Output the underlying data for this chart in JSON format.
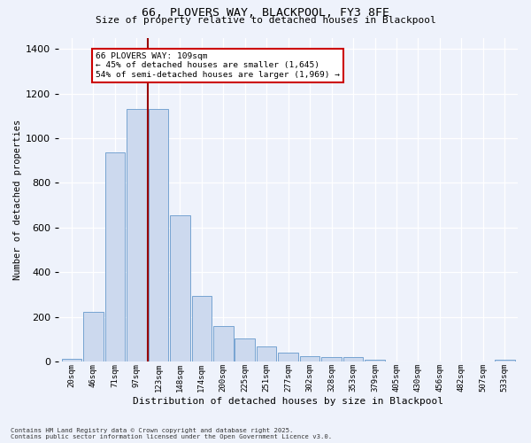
{
  "title1": "66, PLOVERS WAY, BLACKPOOL, FY3 8FE",
  "title2": "Size of property relative to detached houses in Blackpool",
  "xlabel": "Distribution of detached houses by size in Blackpool",
  "ylabel": "Number of detached properties",
  "bar_color": "#ccd9ee",
  "bar_edge_color": "#6699cc",
  "background_color": "#eef2fb",
  "grid_color": "#ffffff",
  "vline_x": 3,
  "vline_color": "#990000",
  "annotation_text": "66 PLOVERS WAY: 109sqm\n← 45% of detached houses are smaller (1,645)\n54% of semi-detached houses are larger (1,969) →",
  "annotation_box_color": "#ffffff",
  "annotation_edge_color": "#cc0000",
  "footer1": "Contains HM Land Registry data © Crown copyright and database right 2025.",
  "footer2": "Contains public sector information licensed under the Open Government Licence v3.0.",
  "bin_labels": [
    "20sqm",
    "46sqm",
    "71sqm",
    "97sqm",
    "123sqm",
    "148sqm",
    "174sqm",
    "200sqm",
    "225sqm",
    "251sqm",
    "277sqm",
    "302sqm",
    "328sqm",
    "353sqm",
    "379sqm",
    "405sqm",
    "430sqm",
    "456sqm",
    "482sqm",
    "507sqm",
    "533sqm"
  ],
  "counts": [
    15,
    225,
    935,
    1130,
    1130,
    655,
    295,
    160,
    105,
    70,
    40,
    25,
    20,
    20,
    10,
    0,
    0,
    0,
    0,
    0,
    10
  ],
  "ylim": [
    0,
    1450
  ],
  "yticks": [
    0,
    200,
    400,
    600,
    800,
    1000,
    1200,
    1400
  ],
  "num_bins": 21
}
